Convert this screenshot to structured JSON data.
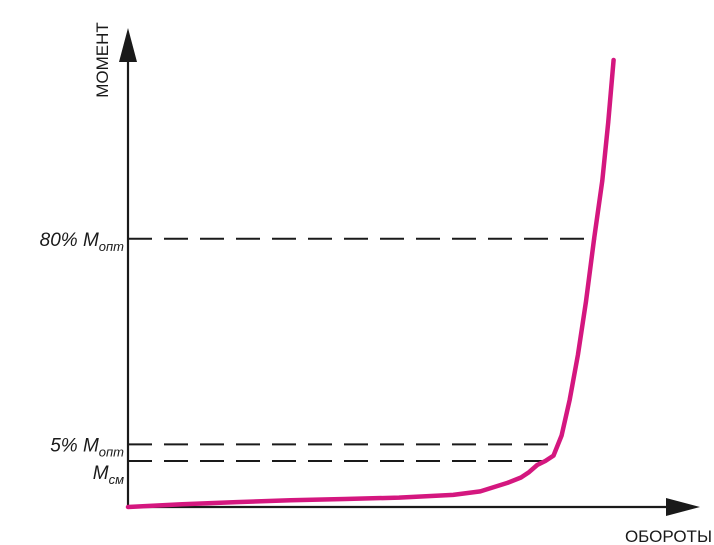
{
  "chart_data": {
    "type": "line",
    "title": "",
    "xlabel": "ОБОРОТЫ",
    "ylabel": "МОМЕНТ",
    "xlim": [
      0,
      100
    ],
    "ylim": [
      0,
      100
    ],
    "grid": false,
    "series": [
      {
        "color": "#d4177f",
        "x": [
          0,
          10,
          20,
          30,
          40,
          50,
          60,
          65,
          70,
          72.5,
          74,
          75.5,
          77,
          78.5,
          80,
          81.5,
          83,
          84.5,
          86,
          87.5,
          88.6,
          89.6
        ],
        "y": [
          0,
          0.6,
          1.1,
          1.5,
          1.8,
          2.1,
          2.7,
          3.5,
          5.4,
          6.6,
          7.8,
          9.4,
          10.3,
          11.5,
          16,
          24,
          34,
          46,
          60,
          73,
          86,
          100
        ]
      }
    ],
    "reference_lines": [
      {
        "label": "80% M",
        "sub": "опт",
        "y": 60
      },
      {
        "label": "5% M",
        "sub": "опт",
        "y": 14
      },
      {
        "label": "M",
        "sub": "см",
        "y": 10.3
      }
    ]
  }
}
